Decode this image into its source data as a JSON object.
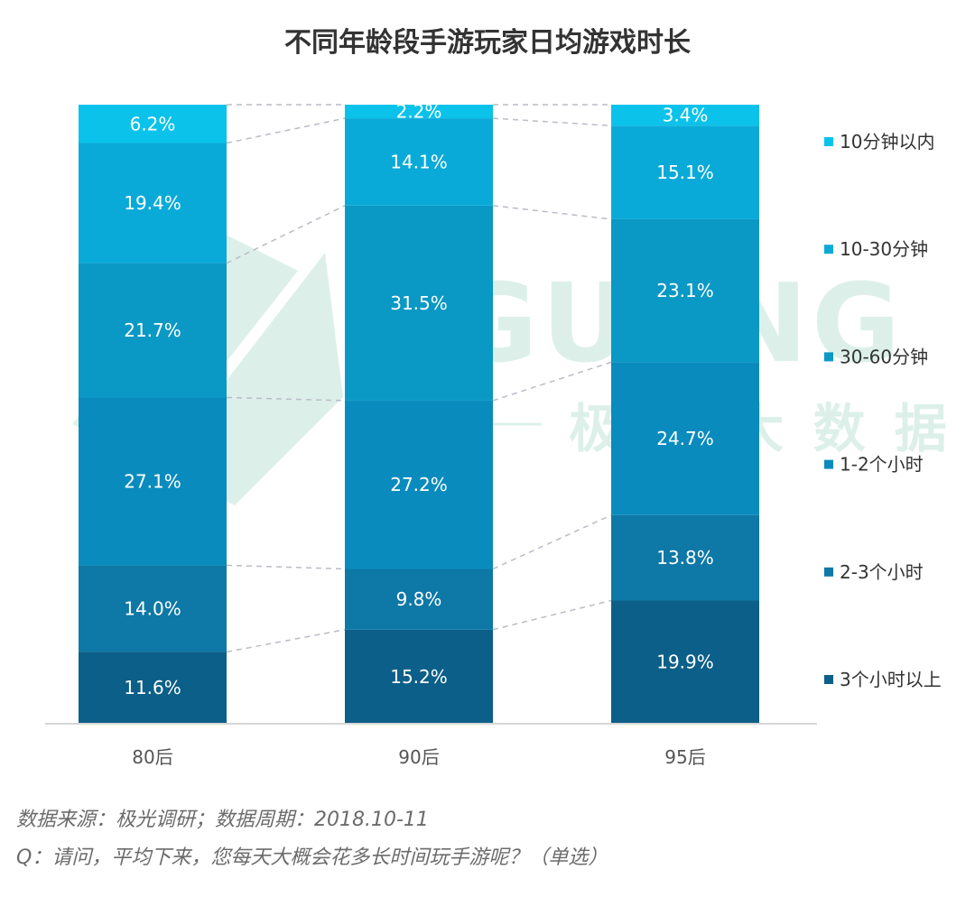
{
  "chart_data": {
    "type": "bar",
    "stacked": true,
    "percent": true,
    "title": "不同年龄段手游玩家日均游戏时长",
    "categories": [
      "80后",
      "90后",
      "95后"
    ],
    "series": [
      {
        "name": "3个小时以上",
        "color": "#0c5f88",
        "values": [
          11.6,
          15.2,
          19.9
        ],
        "labels": [
          "11.6%",
          "15.2%",
          "19.9%"
        ]
      },
      {
        "name": "2-3个小时",
        "color": "#0e78a6",
        "values": [
          14.0,
          9.8,
          13.8
        ],
        "labels": [
          "14.0%",
          "9.8%",
          "13.8%"
        ]
      },
      {
        "name": "1-2个小时",
        "color": "#0a8bbd",
        "values": [
          27.1,
          27.2,
          24.7
        ],
        "labels": [
          "27.1%",
          "27.2%",
          "24.7%"
        ]
      },
      {
        "name": "30-60分钟",
        "color": "#0a98c4",
        "values": [
          21.7,
          31.5,
          23.1
        ],
        "labels": [
          "21.7%",
          "31.5%",
          "23.1%"
        ]
      },
      {
        "name": "10-30分钟",
        "color": "#0aaad8",
        "values": [
          19.4,
          14.1,
          15.1
        ],
        "labels": [
          "19.4%",
          "14.1%",
          "15.1%"
        ]
      },
      {
        "name": "10分钟以内",
        "color": "#0bc2ea",
        "values": [
          6.2,
          2.2,
          3.4
        ],
        "labels": [
          "6.2%",
          "2.2%",
          "3.4%"
        ]
      }
    ],
    "ylim": [
      0,
      100
    ],
    "legend_position": "right"
  },
  "watermark": {
    "brand": "JIGUANG",
    "subtitle": "极 光 大 数 据",
    "color": "#2fa87a"
  },
  "footer": {
    "source": "数据来源：极光调研；数据周期：2018.10-11",
    "question": "Q：请问，平均下来，您每天大概会花多长时间玩手游呢？（单选）"
  }
}
